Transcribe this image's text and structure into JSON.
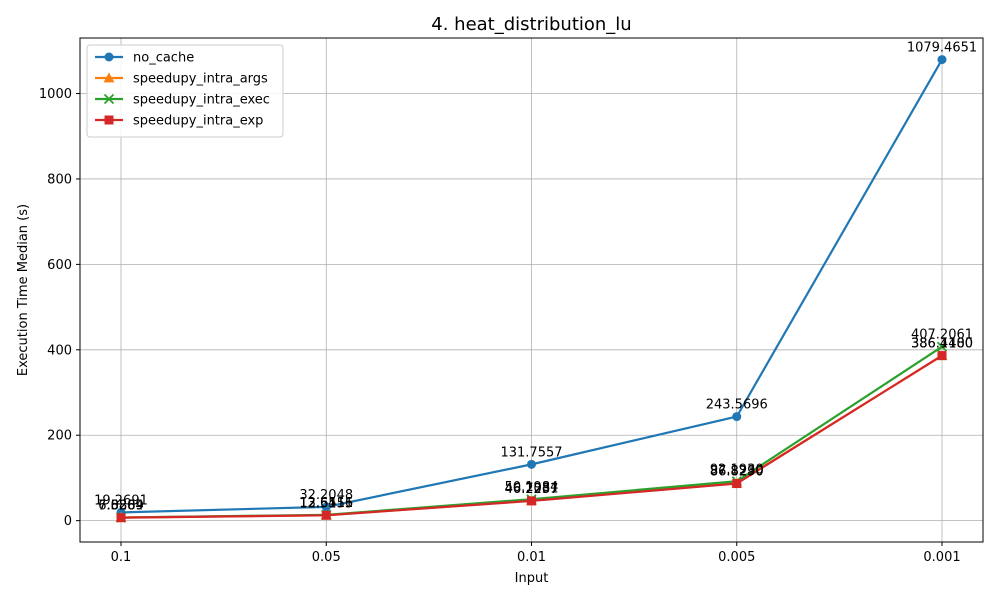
{
  "chart_data": {
    "type": "line",
    "title": "4. heat_distribution_lu",
    "xlabel": "Input",
    "ylabel": "Execution Time Median (s)",
    "categories": [
      "0.1",
      "0.05",
      "0.01",
      "0.005",
      "0.001"
    ],
    "ylim": [
      -50,
      1130
    ],
    "yticks": [
      0,
      200,
      400,
      600,
      800,
      1000
    ],
    "grid": true,
    "legend_position": "top-left",
    "series": [
      {
        "name": "no_cache",
        "color": "#1f77b4",
        "marker": "circle",
        "values": [
          19.2691,
          32.2048,
          131.7557,
          243.5696,
          1079.4651
        ],
        "labels": [
          "19.2691",
          "32.2048",
          "131.7557",
          "243.5696",
          "1079.4651"
        ]
      },
      {
        "name": "speedupy_intra_args",
        "color": "#ff7f0e",
        "marker": "triangle",
        "values": [
          7.5809,
          12.6411,
          46.7081,
          87.823,
          386.11
        ],
        "labels": [
          "7.5809",
          "12.6411",
          "46.7081",
          "87.8230",
          "386.1100"
        ]
      },
      {
        "name": "speedupy_intra_exec",
        "color": "#2ca02c",
        "marker": "x",
        "values": [
          7.0869,
          13.6516,
          50.1984,
          92.193,
          407.2061
        ],
        "labels": [
          "7.0869",
          "13.6516",
          "50.1984",
          "92.1930",
          "407.2061"
        ]
      },
      {
        "name": "speedupy_intra_exp",
        "color": "#d62728",
        "marker": "square",
        "values": [
          6.8284,
          12.5155,
          46.2237,
          86.829,
          386.448
        ],
        "labels": [
          "6.8284",
          "12.5155",
          "46.2237",
          "86.8290",
          "386.4480"
        ]
      }
    ]
  }
}
